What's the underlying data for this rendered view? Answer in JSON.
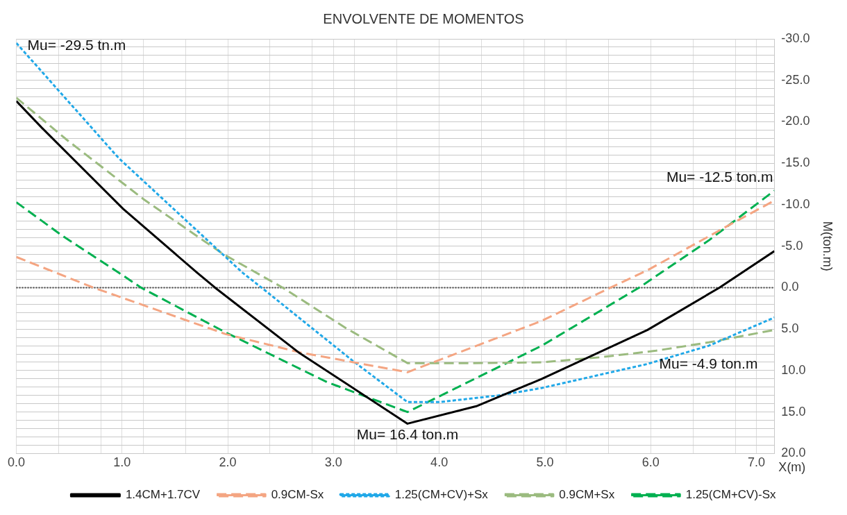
{
  "chart_data": {
    "type": "line",
    "title": "ENVOLVENTE DE MOMENTOS",
    "xlabel": "X(m)",
    "ylabel": "M(ton.m)",
    "xlim": [
      0,
      7.17
    ],
    "xticks": [
      {
        "value": 0,
        "label": "0.0"
      },
      {
        "value": 0.4,
        "label": null
      },
      {
        "value": 0.8,
        "label": null
      },
      {
        "value": 1,
        "label": "1.0"
      },
      {
        "value": 1.2,
        "label": null
      },
      {
        "value": 1.6,
        "label": null
      },
      {
        "value": 2,
        "label": "2.0"
      },
      {
        "value": 2.4,
        "label": null
      },
      {
        "value": 2.8,
        "label": null
      },
      {
        "value": 3,
        "label": "3.0"
      },
      {
        "value": 3.2,
        "label": null
      },
      {
        "value": 3.6,
        "label": null
      },
      {
        "value": 4,
        "label": "4.0"
      },
      {
        "value": 4.4,
        "label": null
      },
      {
        "value": 4.8,
        "label": null
      },
      {
        "value": 5,
        "label": "5.0"
      },
      {
        "value": 5.2,
        "label": null
      },
      {
        "value": 5.6,
        "label": null
      },
      {
        "value": 6,
        "label": "6.0"
      },
      {
        "value": 6.4,
        "label": null
      },
      {
        "value": 6.8,
        "label": null
      },
      {
        "value": 7,
        "label": "7.0"
      }
    ],
    "ylim": [
      20,
      -30
    ],
    "yticks": [
      {
        "value": -30,
        "label": "-30.0"
      },
      {
        "value": -29,
        "label": null
      },
      {
        "value": -28,
        "label": null
      },
      {
        "value": -27,
        "label": null
      },
      {
        "value": -26,
        "label": null
      },
      {
        "value": -25,
        "label": "-25.0"
      },
      {
        "value": -24,
        "label": null
      },
      {
        "value": -23,
        "label": null
      },
      {
        "value": -22,
        "label": null
      },
      {
        "value": -21,
        "label": null
      },
      {
        "value": -20,
        "label": "-20.0"
      },
      {
        "value": -19,
        "label": null
      },
      {
        "value": -18,
        "label": null
      },
      {
        "value": -17,
        "label": null
      },
      {
        "value": -16,
        "label": null
      },
      {
        "value": -15,
        "label": "-15.0"
      },
      {
        "value": -14,
        "label": null
      },
      {
        "value": -13,
        "label": null
      },
      {
        "value": -12,
        "label": null
      },
      {
        "value": -11,
        "label": null
      },
      {
        "value": -10,
        "label": "-10.0"
      },
      {
        "value": -9,
        "label": null
      },
      {
        "value": -8,
        "label": null
      },
      {
        "value": -7,
        "label": null
      },
      {
        "value": -6,
        "label": null
      },
      {
        "value": -5,
        "label": "-5.0"
      },
      {
        "value": -4,
        "label": null
      },
      {
        "value": -3,
        "label": null
      },
      {
        "value": -2,
        "label": null
      },
      {
        "value": -1,
        "label": null
      },
      {
        "value": 0,
        "label": "0.0"
      },
      {
        "value": 1,
        "label": null
      },
      {
        "value": 2,
        "label": null
      },
      {
        "value": 3,
        "label": null
      },
      {
        "value": 4,
        "label": null
      },
      {
        "value": 5,
        "label": "5.0"
      },
      {
        "value": 6,
        "label": null
      },
      {
        "value": 7,
        "label": null
      },
      {
        "value": 8,
        "label": null
      },
      {
        "value": 9,
        "label": null
      },
      {
        "value": 10,
        "label": "10.0"
      },
      {
        "value": 11,
        "label": null
      },
      {
        "value": 12,
        "label": null
      },
      {
        "value": 13,
        "label": null
      },
      {
        "value": 14,
        "label": null
      },
      {
        "value": 15,
        "label": "15.0"
      },
      {
        "value": 16,
        "label": null
      },
      {
        "value": 17,
        "label": null
      },
      {
        "value": 18,
        "label": null
      },
      {
        "value": 19,
        "label": null
      },
      {
        "value": 20,
        "label": "20.0"
      }
    ],
    "grid": true,
    "legend": "bottom",
    "marker": "none",
    "ref_lines": [
      {
        "axis": "y",
        "value": 0,
        "color": "#404040",
        "line_style": "dotted"
      }
    ],
    "series": [
      {
        "name": "1.4CM+1.7CV",
        "color": "#000000",
        "line_style": "solid",
        "x": [
          0,
          0.24,
          1.01,
          1.71,
          1.88,
          2.68,
          3.7,
          4.35,
          4.97,
          5.97,
          6.65,
          7.17
        ],
        "values": [
          -22.5,
          -19.3,
          -9.5,
          -1.8,
          0,
          7.9,
          16.4,
          14.3,
          11.0,
          5.1,
          0,
          -4.4
        ]
      },
      {
        "name": "0.9CM-Sx",
        "color": "#f4a582",
        "line_style": "dashed",
        "x": [
          0,
          0.73,
          1.98,
          2.68,
          3.7,
          4.97,
          5.62,
          5.97,
          6.75,
          7.17
        ],
        "values": [
          -3.7,
          0,
          5.6,
          7.8,
          10.2,
          4.0,
          0,
          -2.1,
          -7.6,
          -10.5
        ]
      },
      {
        "name": "1.25(CM+CV)+Sx",
        "color": "#20a8e8",
        "line_style": "dotted",
        "x": [
          0,
          0.97,
          2.14,
          2.32,
          3.19,
          3.7,
          4.0,
          4.56,
          4.97,
          5.97,
          6.55,
          7.17
        ],
        "values": [
          -29.5,
          -15.6,
          -1.8,
          0,
          8.9,
          13.8,
          13.8,
          13.0,
          12.1,
          9.2,
          7.0,
          3.6
        ]
      },
      {
        "name": "0.9CM+Sx",
        "color": "#9bbb7f",
        "line_style": "dashed",
        "x": [
          0,
          0.48,
          1.21,
          1.95,
          2.52,
          3.12,
          3.7,
          4.32,
          4.97,
          5.52,
          6.05,
          6.55,
          7.17
        ],
        "values": [
          -22.9,
          -17.8,
          -10.6,
          -4.1,
          0,
          4.9,
          9.1,
          9.1,
          9.0,
          8.4,
          7.6,
          6.6,
          5.1
        ]
      },
      {
        "name": "1.25(CM+CV)-Sx",
        "color": "#00b050",
        "line_style": "dashed",
        "x": [
          0,
          0.43,
          0.97,
          1.18,
          1.98,
          2.94,
          3.7,
          3.97,
          4.97,
          5.89,
          6.55,
          7.17
        ],
        "values": [
          -10.3,
          -6.3,
          -1.8,
          0,
          5.4,
          11.4,
          15.0,
          13.3,
          7.0,
          0,
          -5.7,
          -11.7
        ]
      }
    ],
    "annotations": [
      {
        "text": "Mu= -29.5 tn.m",
        "x": 0,
        "y": -29.5
      },
      {
        "text": "Mu= -12.5 ton.m",
        "x": 7.17,
        "y": -11.7
      },
      {
        "text": "Mu= 16.4 ton.m",
        "x": 3.7,
        "y": 16.4
      },
      "Mu= -4.9 ton.m"
    ]
  }
}
